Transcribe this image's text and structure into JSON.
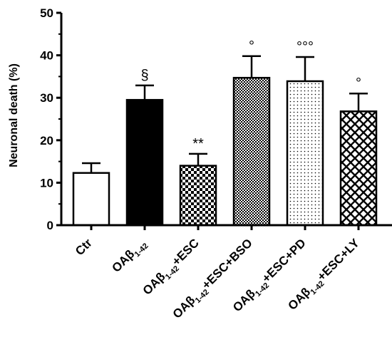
{
  "chart_data": {
    "type": "bar",
    "title": "",
    "ylabel": "Neuronal death (%)",
    "xlabel": "",
    "ylim": [
      0,
      50
    ],
    "yticks": [
      0,
      10,
      20,
      30,
      40,
      50
    ],
    "ytick_labels": [
      "0",
      "10",
      "20",
      "30",
      "40",
      "50"
    ],
    "grid": false,
    "legend": "none",
    "categories": [
      {
        "prefix": "Ctr",
        "sub": "",
        "suffix": ""
      },
      {
        "prefix": "OAβ",
        "sub": "1-42",
        "suffix": ""
      },
      {
        "prefix": "OAβ",
        "sub": "1-42",
        "suffix": "+ESC"
      },
      {
        "prefix": "OAβ",
        "sub": "1-42",
        "suffix": "+ESC+BSO"
      },
      {
        "prefix": "OAβ",
        "sub": "1-42",
        "suffix": "+ESC+PD"
      },
      {
        "prefix": "OAβ",
        "sub": "1-42",
        "suffix": "+ESC+LY"
      }
    ],
    "values": [
      12.3,
      29.5,
      14.0,
      34.7,
      33.9,
      26.8
    ],
    "errors": [
      2.3,
      3.4,
      2.8,
      5.1,
      5.7,
      4.2
    ],
    "annotations": [
      "",
      "§",
      "**",
      "°",
      "°°°",
      "°"
    ],
    "fills": [
      "white",
      "black",
      "checker",
      "fine-checker",
      "dots",
      "crosshatch"
    ]
  }
}
